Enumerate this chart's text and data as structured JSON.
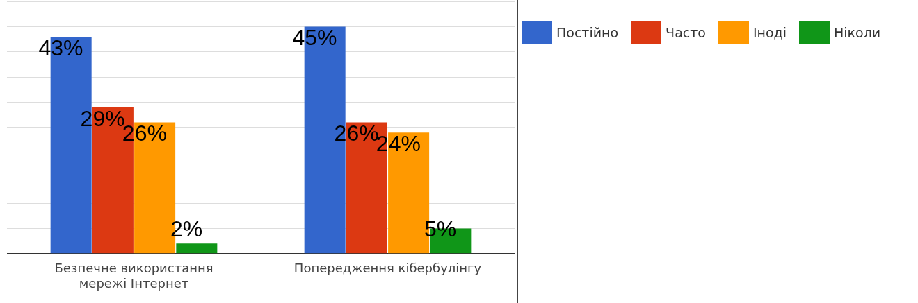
{
  "chart_data": {
    "type": "bar",
    "categories": [
      "Безпечне використання мережі Інтернет",
      "Попередження кібербулінгу"
    ],
    "series": [
      {
        "name": "Постійно",
        "color": "#3366cc",
        "values": [
          43,
          45
        ],
        "value_labels": [
          "43%",
          "45%"
        ]
      },
      {
        "name": "Часто",
        "color": "#dc3912",
        "values": [
          29,
          26
        ],
        "value_labels": [
          "29%",
          "26%"
        ]
      },
      {
        "name": "Іноді",
        "color": "#ff9900",
        "values": [
          26,
          24
        ],
        "value_labels": [
          "26%",
          "24%"
        ]
      },
      {
        "name": "Ніколи",
        "color": "#109618",
        "values": [
          2,
          5
        ],
        "value_labels": [
          "2%",
          "5%"
        ]
      }
    ],
    "tick_labels": "x",
    "grid": "y",
    "legend": "top right"
  }
}
